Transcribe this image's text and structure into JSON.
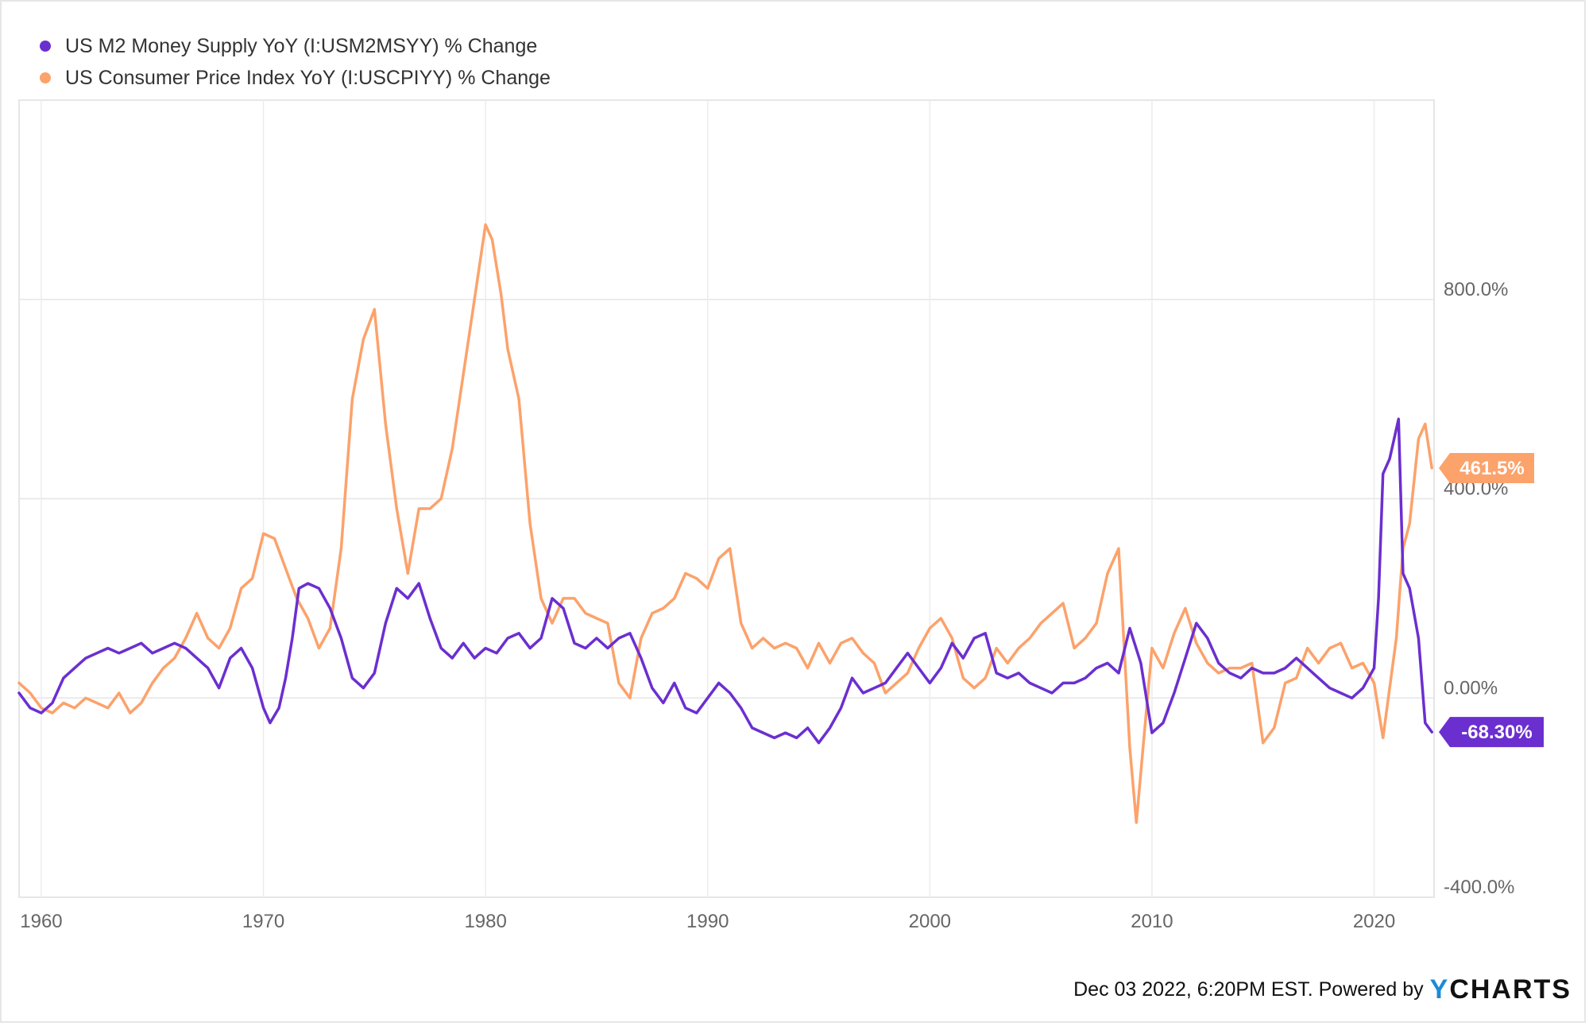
{
  "chart_data": {
    "type": "line",
    "series": [
      {
        "name": "US M2 Money Supply YoY (I:USM2MSYY) % Change",
        "color": "#6b2fd0",
        "end_label": "-68.30%",
        "points": [
          [
            1959.0,
            10
          ],
          [
            1959.5,
            -20
          ],
          [
            1960.0,
            -30
          ],
          [
            1960.5,
            -10
          ],
          [
            1961.0,
            40
          ],
          [
            1961.5,
            60
          ],
          [
            1962.0,
            80
          ],
          [
            1962.5,
            90
          ],
          [
            1963.0,
            100
          ],
          [
            1963.5,
            90
          ],
          [
            1964.0,
            100
          ],
          [
            1964.5,
            110
          ],
          [
            1965.0,
            90
          ],
          [
            1965.5,
            100
          ],
          [
            1966.0,
            110
          ],
          [
            1966.5,
            100
          ],
          [
            1967.0,
            80
          ],
          [
            1967.5,
            60
          ],
          [
            1968.0,
            20
          ],
          [
            1968.5,
            80
          ],
          [
            1969.0,
            100
          ],
          [
            1969.5,
            60
          ],
          [
            1970.0,
            -20
          ],
          [
            1970.3,
            -50
          ],
          [
            1970.7,
            -20
          ],
          [
            1971.0,
            40
          ],
          [
            1971.3,
            120
          ],
          [
            1971.6,
            220
          ],
          [
            1972.0,
            230
          ],
          [
            1972.5,
            220
          ],
          [
            1973.0,
            180
          ],
          [
            1973.5,
            120
          ],
          [
            1974.0,
            40
          ],
          [
            1974.5,
            20
          ],
          [
            1975.0,
            50
          ],
          [
            1975.5,
            150
          ],
          [
            1976.0,
            220
          ],
          [
            1976.5,
            200
          ],
          [
            1977.0,
            230
          ],
          [
            1977.5,
            160
          ],
          [
            1978.0,
            100
          ],
          [
            1978.5,
            80
          ],
          [
            1979.0,
            110
          ],
          [
            1979.5,
            80
          ],
          [
            1980.0,
            100
          ],
          [
            1980.5,
            90
          ],
          [
            1981.0,
            120
          ],
          [
            1981.5,
            130
          ],
          [
            1982.0,
            100
          ],
          [
            1982.5,
            120
          ],
          [
            1983.0,
            200
          ],
          [
            1983.5,
            180
          ],
          [
            1984.0,
            110
          ],
          [
            1984.5,
            100
          ],
          [
            1985.0,
            120
          ],
          [
            1985.5,
            100
          ],
          [
            1986.0,
            120
          ],
          [
            1986.5,
            130
          ],
          [
            1987.0,
            80
          ],
          [
            1987.5,
            20
          ],
          [
            1988.0,
            -10
          ],
          [
            1988.5,
            30
          ],
          [
            1989.0,
            -20
          ],
          [
            1989.5,
            -30
          ],
          [
            1990.0,
            0
          ],
          [
            1990.5,
            30
          ],
          [
            1991.0,
            10
          ],
          [
            1991.5,
            -20
          ],
          [
            1992.0,
            -60
          ],
          [
            1992.5,
            -70
          ],
          [
            1993.0,
            -80
          ],
          [
            1993.5,
            -70
          ],
          [
            1994.0,
            -80
          ],
          [
            1994.5,
            -60
          ],
          [
            1995.0,
            -90
          ],
          [
            1995.5,
            -60
          ],
          [
            1996.0,
            -20
          ],
          [
            1996.5,
            40
          ],
          [
            1997.0,
            10
          ],
          [
            1997.5,
            20
          ],
          [
            1998.0,
            30
          ],
          [
            1998.5,
            60
          ],
          [
            1999.0,
            90
          ],
          [
            1999.5,
            60
          ],
          [
            2000.0,
            30
          ],
          [
            2000.5,
            60
          ],
          [
            2001.0,
            110
          ],
          [
            2001.5,
            80
          ],
          [
            2002.0,
            120
          ],
          [
            2002.5,
            130
          ],
          [
            2003.0,
            50
          ],
          [
            2003.5,
            40
          ],
          [
            2004.0,
            50
          ],
          [
            2004.5,
            30
          ],
          [
            2005.0,
            20
          ],
          [
            2005.5,
            10
          ],
          [
            2006.0,
            30
          ],
          [
            2006.5,
            30
          ],
          [
            2007.0,
            40
          ],
          [
            2007.5,
            60
          ],
          [
            2008.0,
            70
          ],
          [
            2008.5,
            50
          ],
          [
            2009.0,
            140
          ],
          [
            2009.5,
            70
          ],
          [
            2010.0,
            -70
          ],
          [
            2010.5,
            -50
          ],
          [
            2011.0,
            10
          ],
          [
            2011.5,
            80
          ],
          [
            2012.0,
            150
          ],
          [
            2012.5,
            120
          ],
          [
            2013.0,
            70
          ],
          [
            2013.5,
            50
          ],
          [
            2014.0,
            40
          ],
          [
            2014.5,
            60
          ],
          [
            2015.0,
            50
          ],
          [
            2015.5,
            50
          ],
          [
            2016.0,
            60
          ],
          [
            2016.5,
            80
          ],
          [
            2017.0,
            60
          ],
          [
            2017.5,
            40
          ],
          [
            2018.0,
            20
          ],
          [
            2018.5,
            10
          ],
          [
            2019.0,
            0
          ],
          [
            2019.5,
            20
          ],
          [
            2020.0,
            60
          ],
          [
            2020.2,
            200
          ],
          [
            2020.4,
            450
          ],
          [
            2020.7,
            480
          ],
          [
            2021.1,
            560
          ],
          [
            2021.3,
            250
          ],
          [
            2021.6,
            220
          ],
          [
            2022.0,
            120
          ],
          [
            2022.3,
            -50
          ],
          [
            2022.6,
            -68.3
          ]
        ]
      },
      {
        "name": "US Consumer Price Index YoY (I:USCPIYY) % Change",
        "color": "#fca26b",
        "end_label": "461.5%",
        "points": [
          [
            1959.0,
            30
          ],
          [
            1959.5,
            10
          ],
          [
            1960.0,
            -20
          ],
          [
            1960.5,
            -30
          ],
          [
            1961.0,
            -10
          ],
          [
            1961.5,
            -20
          ],
          [
            1962.0,
            0
          ],
          [
            1962.5,
            -10
          ],
          [
            1963.0,
            -20
          ],
          [
            1963.5,
            10
          ],
          [
            1964.0,
            -30
          ],
          [
            1964.5,
            -10
          ],
          [
            1965.0,
            30
          ],
          [
            1965.5,
            60
          ],
          [
            1966.0,
            80
          ],
          [
            1966.5,
            120
          ],
          [
            1967.0,
            170
          ],
          [
            1967.5,
            120
          ],
          [
            1968.0,
            100
          ],
          [
            1968.5,
            140
          ],
          [
            1969.0,
            220
          ],
          [
            1969.5,
            240
          ],
          [
            1970.0,
            330
          ],
          [
            1970.5,
            320
          ],
          [
            1971.0,
            260
          ],
          [
            1971.5,
            200
          ],
          [
            1972.0,
            160
          ],
          [
            1972.5,
            100
          ],
          [
            1973.0,
            140
          ],
          [
            1973.5,
            300
          ],
          [
            1974.0,
            600
          ],
          [
            1974.5,
            720
          ],
          [
            1975.0,
            780
          ],
          [
            1975.5,
            550
          ],
          [
            1976.0,
            380
          ],
          [
            1976.5,
            250
          ],
          [
            1977.0,
            380
          ],
          [
            1977.5,
            380
          ],
          [
            1978.0,
            400
          ],
          [
            1978.5,
            500
          ],
          [
            1979.0,
            650
          ],
          [
            1979.5,
            800
          ],
          [
            1980.0,
            950
          ],
          [
            1980.3,
            920
          ],
          [
            1980.7,
            810
          ],
          [
            1981.0,
            700
          ],
          [
            1981.5,
            600
          ],
          [
            1982.0,
            350
          ],
          [
            1982.5,
            200
          ],
          [
            1983.0,
            150
          ],
          [
            1983.5,
            200
          ],
          [
            1984.0,
            200
          ],
          [
            1984.5,
            170
          ],
          [
            1985.0,
            160
          ],
          [
            1985.5,
            150
          ],
          [
            1986.0,
            30
          ],
          [
            1986.5,
            0
          ],
          [
            1987.0,
            120
          ],
          [
            1987.5,
            170
          ],
          [
            1988.0,
            180
          ],
          [
            1988.5,
            200
          ],
          [
            1989.0,
            250
          ],
          [
            1989.5,
            240
          ],
          [
            1990.0,
            220
          ],
          [
            1990.5,
            280
          ],
          [
            1991.0,
            300
          ],
          [
            1991.5,
            150
          ],
          [
            1992.0,
            100
          ],
          [
            1992.5,
            120
          ],
          [
            1993.0,
            100
          ],
          [
            1993.5,
            110
          ],
          [
            1994.0,
            100
          ],
          [
            1994.5,
            60
          ],
          [
            1995.0,
            110
          ],
          [
            1995.5,
            70
          ],
          [
            1996.0,
            110
          ],
          [
            1996.5,
            120
          ],
          [
            1997.0,
            90
          ],
          [
            1997.5,
            70
          ],
          [
            1998.0,
            10
          ],
          [
            1998.5,
            30
          ],
          [
            1999.0,
            50
          ],
          [
            1999.5,
            100
          ],
          [
            2000.0,
            140
          ],
          [
            2000.5,
            160
          ],
          [
            2001.0,
            120
          ],
          [
            2001.5,
            40
          ],
          [
            2002.0,
            20
          ],
          [
            2002.5,
            40
          ],
          [
            2003.0,
            100
          ],
          [
            2003.5,
            70
          ],
          [
            2004.0,
            100
          ],
          [
            2004.5,
            120
          ],
          [
            2005.0,
            150
          ],
          [
            2005.5,
            170
          ],
          [
            2006.0,
            190
          ],
          [
            2006.5,
            100
          ],
          [
            2007.0,
            120
          ],
          [
            2007.5,
            150
          ],
          [
            2008.0,
            250
          ],
          [
            2008.5,
            300
          ],
          [
            2009.0,
            -100
          ],
          [
            2009.3,
            -250
          ],
          [
            2009.6,
            -100
          ],
          [
            2010.0,
            100
          ],
          [
            2010.5,
            60
          ],
          [
            2011.0,
            130
          ],
          [
            2011.5,
            180
          ],
          [
            2012.0,
            110
          ],
          [
            2012.5,
            70
          ],
          [
            2013.0,
            50
          ],
          [
            2013.5,
            60
          ],
          [
            2014.0,
            60
          ],
          [
            2014.5,
            70
          ],
          [
            2015.0,
            -90
          ],
          [
            2015.5,
            -60
          ],
          [
            2016.0,
            30
          ],
          [
            2016.5,
            40
          ],
          [
            2017.0,
            100
          ],
          [
            2017.5,
            70
          ],
          [
            2018.0,
            100
          ],
          [
            2018.5,
            110
          ],
          [
            2019.0,
            60
          ],
          [
            2019.5,
            70
          ],
          [
            2020.0,
            30
          ],
          [
            2020.4,
            -80
          ],
          [
            2020.7,
            20
          ],
          [
            2021.0,
            120
          ],
          [
            2021.3,
            300
          ],
          [
            2021.6,
            350
          ],
          [
            2022.0,
            520
          ],
          [
            2022.3,
            550
          ],
          [
            2022.6,
            461.5
          ]
        ]
      }
    ],
    "x_ticks": [
      "1960",
      "1970",
      "1980",
      "1990",
      "2000",
      "2010",
      "2020"
    ],
    "x_tick_values": [
      1960,
      1970,
      1980,
      1990,
      2000,
      2010,
      2020
    ],
    "y_ticks": [
      "800.0%",
      "400.0%",
      "0.00%",
      "-400.0%"
    ],
    "y_tick_values": [
      800,
      400,
      0,
      -400
    ],
    "xlim": [
      1959,
      2022.7
    ],
    "ylim": [
      -400,
      1200
    ],
    "grid": true,
    "legend_position": "top-left"
  },
  "footer": {
    "timestamp_text": "Dec 03 2022, 6:20PM EST. Powered by",
    "brand_y": "Y",
    "brand_rest": "CHARTS"
  }
}
